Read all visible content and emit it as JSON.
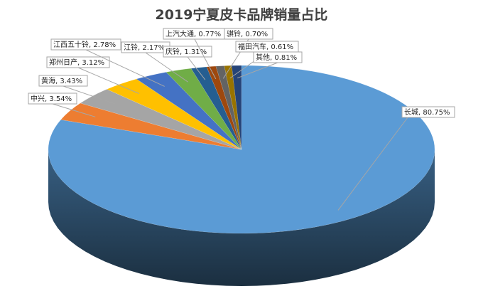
{
  "chart_data": {
    "type": "pie",
    "title": "2019宁夏皮卡品牌销量占比",
    "slices": [
      {
        "name": "长城",
        "value": 80.75,
        "label": "长城, 80.75%",
        "color": "#5b9bd5"
      },
      {
        "name": "中兴",
        "value": 3.54,
        "label": "中兴, 3.54%",
        "color": "#ed7d31"
      },
      {
        "name": "黄海",
        "value": 3.43,
        "label": "黄海, 3.43%",
        "color": "#a5a5a5"
      },
      {
        "name": "郑州日产",
        "value": 3.12,
        "label": "郑州日产, 3.12%",
        "color": "#ffc000"
      },
      {
        "name": "江西五十铃",
        "value": 2.78,
        "label": "江西五十铃, 2.78%",
        "color": "#4472c4"
      },
      {
        "name": "江铃",
        "value": 2.17,
        "label": "江铃, 2.17%",
        "color": "#70ad47"
      },
      {
        "name": "庆铃",
        "value": 1.31,
        "label": "庆铃, 1.31%",
        "color": "#255e91"
      },
      {
        "name": "上汽大通",
        "value": 0.77,
        "label": "上汽大通, 0.77%",
        "color": "#9e480e"
      },
      {
        "name": "骐铃",
        "value": 0.7,
        "label": "骐铃, 0.70%",
        "color": "#636363"
      },
      {
        "name": "福田汽车",
        "value": 0.61,
        "label": "福田汽车, 0.61%",
        "color": "#997300"
      },
      {
        "name": "其他",
        "value": 0.81,
        "label": "其他, 0.81%",
        "color": "#264478"
      }
    ]
  }
}
